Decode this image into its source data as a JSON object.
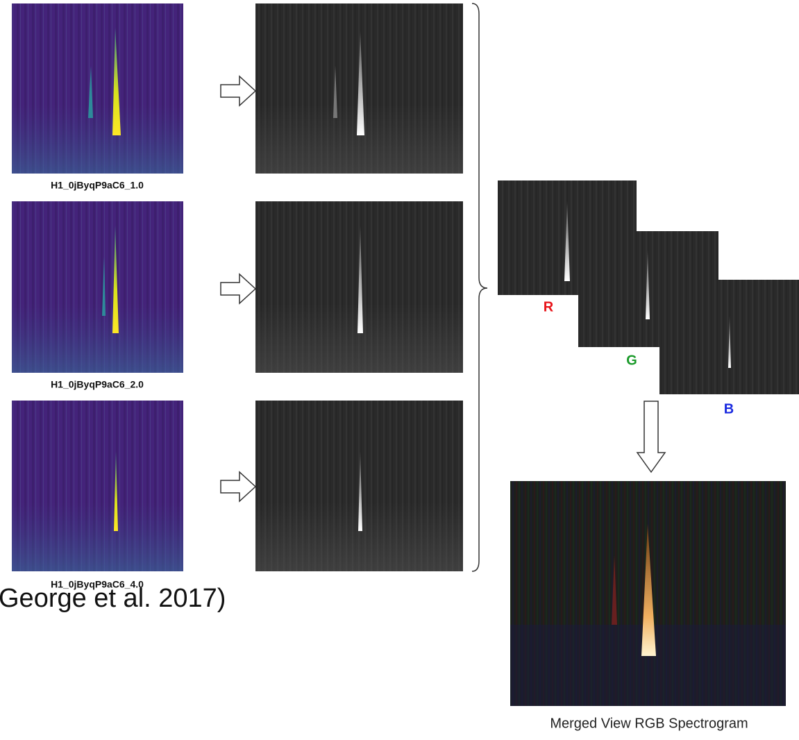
{
  "panels": [
    {
      "label": "H1_0jByqP9aC6_1.0"
    },
    {
      "label": "H1_0jByqP9aC6_2.0"
    },
    {
      "label": "H1_0jByqP9aC6_4.0"
    }
  ],
  "channels": [
    "R",
    "G",
    "B"
  ],
  "merged_label": "Merged View RGB Spectrogram",
  "citation": "George et al. 2017)"
}
